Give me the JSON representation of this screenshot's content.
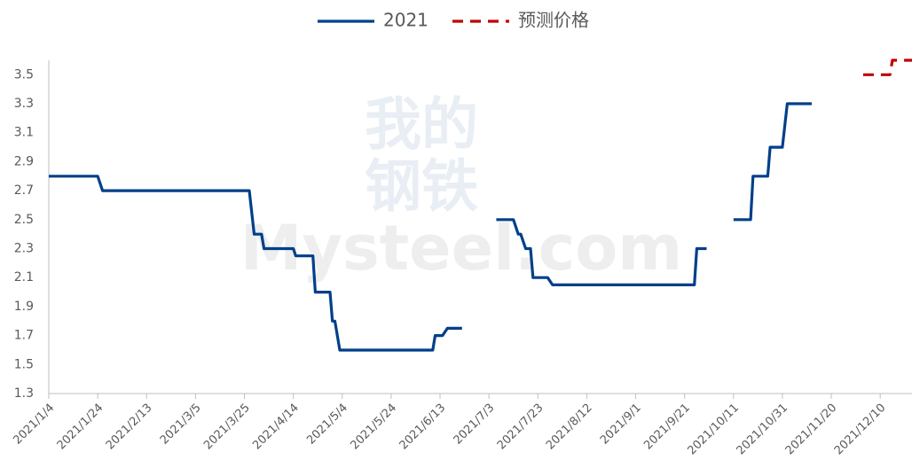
{
  "chart_data": {
    "type": "line",
    "watermark": [
      "我的",
      "钢铁",
      "Mysteel.com"
    ],
    "legend": "top",
    "grid": false,
    "xlim": [
      "2021/1/4",
      "2021/12/23"
    ],
    "xticks": [
      "2021/1/4",
      "2021/1/24",
      "2021/2/13",
      "2021/3/5",
      "2021/3/25",
      "2021/4/14",
      "2021/5/4",
      "2021/5/24",
      "2021/6/13",
      "2021/7/3",
      "2021/7/23",
      "2021/8/12",
      "2021/9/1",
      "2021/9/21",
      "2021/10/11",
      "2021/10/31",
      "2021/11/20",
      "2021/12/10"
    ],
    "ylim": [
      1.3,
      3.6
    ],
    "yticks": [
      1.3,
      1.5,
      1.7,
      1.9,
      2.1,
      2.3,
      2.5,
      2.7,
      2.9,
      3.1,
      3.3,
      3.5
    ],
    "series": [
      {
        "name": "2021",
        "color": "#003f8a",
        "dash": false,
        "x": [
          "2021/1/4",
          "2021/1/24",
          "2021/1/26",
          "2021/3/27",
          "2021/3/29",
          "2021/4/1",
          "2021/4/2",
          "2021/4/14",
          "2021/4/15",
          "2021/4/22",
          "2021/4/23",
          "2021/4/29",
          "2021/4/30",
          "2021/5/1",
          "2021/5/3",
          "2021/6/10",
          "2021/6/11",
          "2021/6/14",
          "2021/6/16",
          "2021/6/22",
          "2021/7/1",
          "2021/7/6",
          "2021/7/13",
          "2021/7/15",
          "2021/7/16",
          "2021/7/18",
          "2021/7/20",
          "2021/7/21",
          "2021/7/27",
          "2021/7/29",
          "2021/9/25",
          "2021/9/26",
          "2021/9/30",
          "2021/10/6",
          "2021/10/11",
          "2021/10/18",
          "2021/10/19",
          "2021/10/25",
          "2021/10/26",
          "2021/10/31",
          "2021/11/2",
          "2021/11/12"
        ],
        "values": [
          2.8,
          2.8,
          2.7,
          2.7,
          2.4,
          2.4,
          2.3,
          2.3,
          2.25,
          2.25,
          2.0,
          2.0,
          1.8,
          1.8,
          1.6,
          1.6,
          1.7,
          1.7,
          1.75,
          1.75,
          null,
          2.5,
          2.5,
          2.4,
          2.4,
          2.3,
          2.3,
          2.1,
          2.1,
          2.05,
          2.05,
          2.3,
          2.3,
          null,
          2.5,
          2.5,
          2.8,
          2.8,
          3.0,
          3.0,
          3.3,
          3.3
        ]
      },
      {
        "name": "预测价格",
        "color": "#c00000",
        "dash": true,
        "x": [
          "2021/12/3",
          "2021/12/14",
          "2021/12/15",
          "2021/12/23"
        ],
        "values": [
          3.5,
          3.5,
          3.6,
          3.6
        ]
      }
    ]
  }
}
